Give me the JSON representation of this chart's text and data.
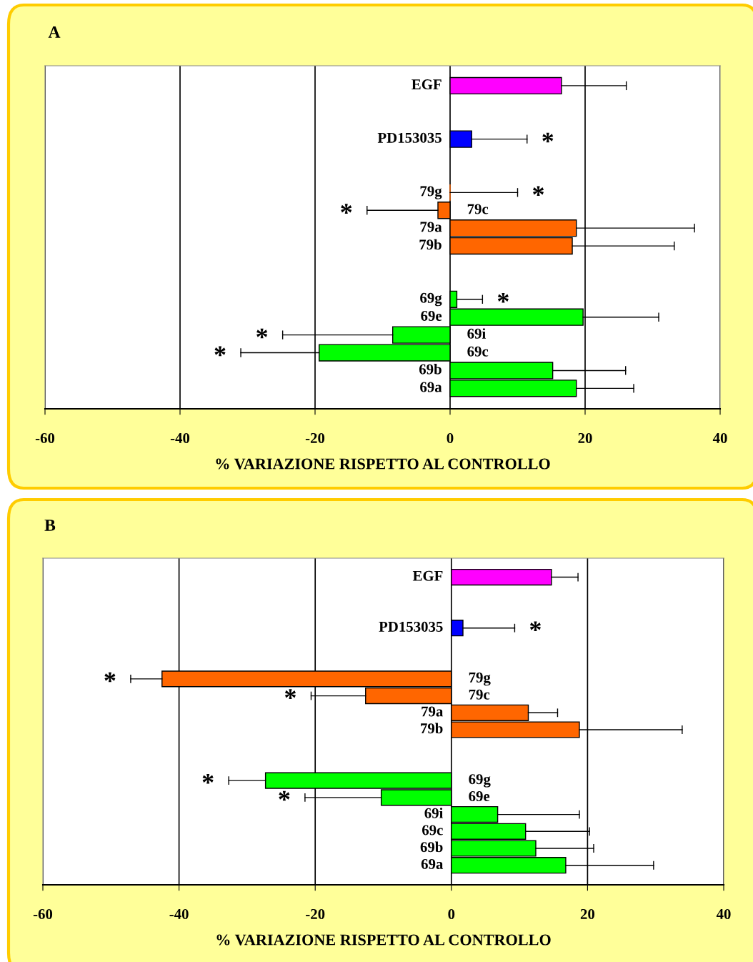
{
  "chart_data": [
    {
      "type": "bar",
      "orientation": "horizontal",
      "title": "A",
      "xlabel": "% VARIAZIONE RISPETTO AL CONTROLLO",
      "categories": [
        "EGF",
        null,
        null,
        "PD153035",
        null,
        null,
        "79g",
        "79c",
        "79a",
        "79b",
        null,
        null,
        "69g",
        "69e",
        "69i",
        "69c",
        "69b",
        "69a"
      ],
      "values": [
        16.5,
        null,
        null,
        3.2,
        null,
        null,
        0,
        -1.8,
        18.7,
        18.1,
        null,
        null,
        1.0,
        19.7,
        -8.5,
        -19.4,
        15.2,
        18.7
      ],
      "errors": [
        [
          16.5,
          26.1
        ],
        null,
        null,
        [
          3.2,
          11.4
        ],
        null,
        null,
        [
          0,
          10.0
        ],
        [
          -12.3,
          -1.8
        ],
        [
          18.7,
          36.2
        ],
        [
          18.1,
          33.2
        ],
        null,
        null,
        [
          1.0,
          4.8
        ],
        [
          19.7,
          30.9
        ],
        [
          -24.8,
          -8.5
        ],
        [
          -31.0,
          -19.4
        ],
        [
          15.2,
          26.0
        ],
        [
          18.7,
          27.2
        ]
      ],
      "colors": [
        "#ff00ff",
        null,
        null,
        "#0000ff",
        null,
        null,
        "#ff6600",
        "#ff6600",
        "#ff6600",
        "#ff6600",
        null,
        null,
        "#00ff00",
        "#00ff00",
        "#00ff00",
        "#00ff00",
        "#00ff00",
        "#00ff00"
      ],
      "xlim": [
        -60,
        40
      ],
      "xticks": [
        -60,
        -40,
        -20,
        0,
        20,
        40
      ],
      "grid": "x",
      "tick_labels": "x",
      "annotations": [
        {
          "text": "*",
          "x": 11.4,
          "y": "PD153035"
        },
        {
          "text": "*",
          "x": 10.0,
          "y": "79g"
        },
        {
          "text": "*",
          "x": -12.3,
          "y": "79c"
        },
        {
          "text": "*",
          "x": 4.8,
          "y": "69g"
        },
        {
          "text": "*",
          "x": -24.8,
          "y": "69i"
        },
        {
          "text": "*",
          "x": -31.0,
          "y": "69c"
        }
      ]
    },
    {
      "type": "bar",
      "orientation": "horizontal",
      "title": "B",
      "xlabel": "% VARIAZIONE RISPETTO AL CONTROLLO",
      "categories": [
        "EGF",
        null,
        null,
        "PD153035",
        null,
        null,
        "79g",
        "79c",
        "79a",
        "79b",
        null,
        null,
        "69g",
        "69e",
        "69i",
        "69c",
        "69b",
        "69a"
      ],
      "values": [
        14.7,
        null,
        null,
        1.7,
        null,
        null,
        -42.5,
        -12.6,
        11.3,
        18.8,
        null,
        null,
        -27.3,
        -10.3,
        6.8,
        10.9,
        12.4,
        16.8
      ],
      "errors": [
        [
          14.7,
          18.6
        ],
        null,
        null,
        [
          1.7,
          9.3
        ],
        null,
        null,
        [
          -47.1,
          -42.5
        ],
        [
          -20.6,
          -12.6
        ],
        [
          11.3,
          15.6
        ],
        [
          18.8,
          33.9
        ],
        null,
        null,
        [
          -32.7,
          -27.3
        ],
        [
          -21.5,
          -10.3
        ],
        [
          6.8,
          18.8
        ],
        [
          10.9,
          20.3
        ],
        [
          12.4,
          20.9
        ],
        [
          16.8,
          29.7
        ]
      ],
      "colors": [
        "#ff00ff",
        null,
        null,
        "#0000ff",
        null,
        null,
        "#ff6600",
        "#ff6600",
        "#ff6600",
        "#ff6600",
        null,
        null,
        "#00ff00",
        "#00ff00",
        "#00ff00",
        "#00ff00",
        "#00ff00",
        "#00ff00"
      ],
      "xlim": [
        -60,
        40
      ],
      "xticks": [
        -60,
        -40,
        -20,
        0,
        20,
        40
      ],
      "grid": "x",
      "tick_labels": "x",
      "annotations": [
        {
          "text": "*",
          "x": 9.3,
          "y": "PD153035"
        },
        {
          "text": "*",
          "x": -47.1,
          "y": "79g"
        },
        {
          "text": "*",
          "x": -20.6,
          "y": "79c"
        },
        {
          "text": "*",
          "x": -32.7,
          "y": "69g"
        },
        {
          "text": "*",
          "x": -21.5,
          "y": "69e"
        }
      ]
    }
  ]
}
